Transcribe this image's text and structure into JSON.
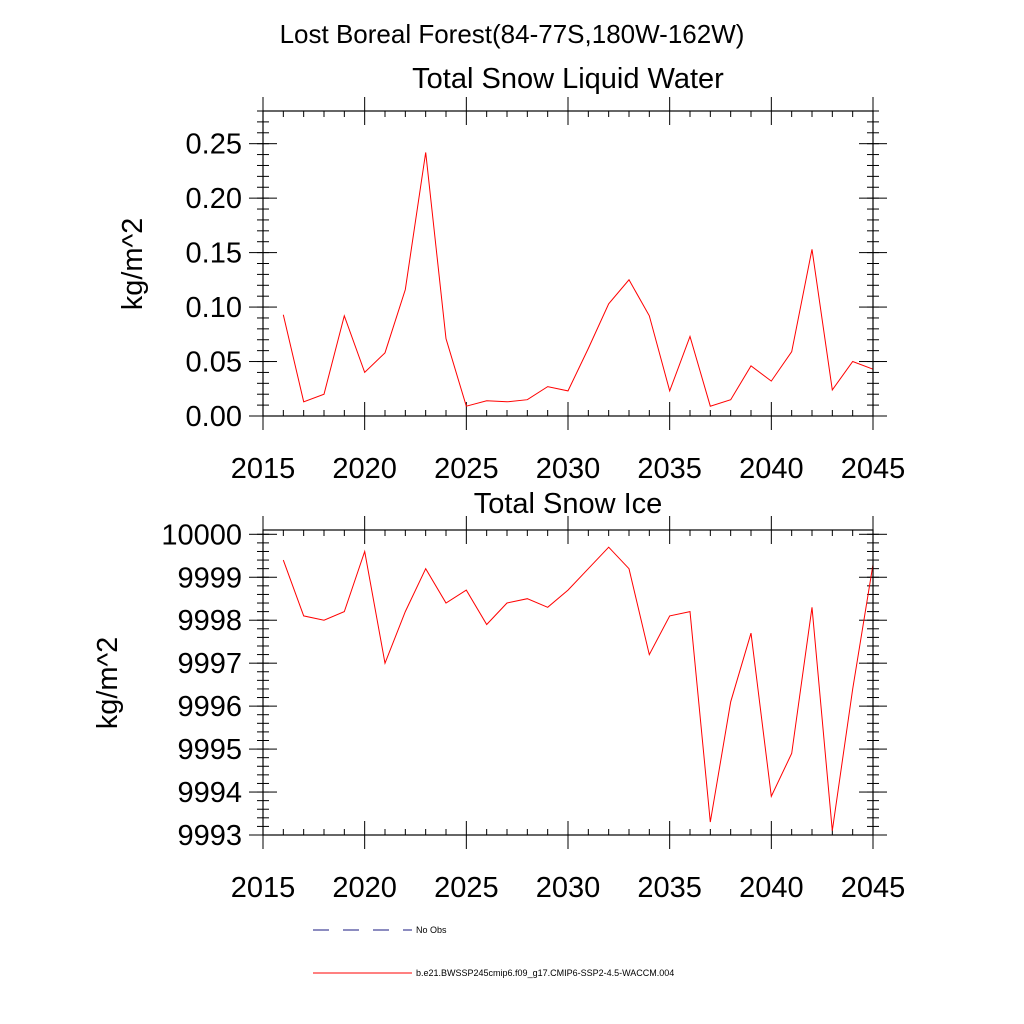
{
  "figure": {
    "title": "Lost Boreal Forest(84-77S,180W-162W)"
  },
  "legend": {
    "obs_label": "No Obs",
    "model_label": "b.e21.BWSSP245cmip6.f09_g17.CMIP6-SSP2-4.5-WACCM.004",
    "obs_color": "#1a1a80",
    "model_color": "#ff0000"
  },
  "chart_data": [
    {
      "type": "line",
      "title": "Total Snow Liquid Water",
      "xlabel": "",
      "ylabel": "kg/m^2",
      "xlim": [
        2015,
        2045
      ],
      "ylim": [
        0.0,
        0.28
      ],
      "xticks": [
        2015,
        2020,
        2025,
        2030,
        2035,
        2040,
        2045
      ],
      "xtick_labels": [
        "2015",
        "2020",
        "2025",
        "2030",
        "2035",
        "2040",
        "2045"
      ],
      "yticks": [
        0.0,
        0.05,
        0.1,
        0.15,
        0.2,
        0.25
      ],
      "ytick_labels": [
        "0.00",
        "0.05",
        "0.10",
        "0.15",
        "0.20",
        "0.25"
      ],
      "grid": false,
      "series": [
        {
          "color": "#ff0000",
          "x": [
            2016,
            2017,
            2018,
            2019,
            2020,
            2021,
            2022,
            2023,
            2024,
            2025,
            2026,
            2027,
            2028,
            2029,
            2030,
            2031,
            2032,
            2033,
            2034,
            2035,
            2036,
            2037,
            2038,
            2039,
            2040,
            2041,
            2042,
            2043,
            2044,
            2045
          ],
          "values": [
            0.093,
            0.013,
            0.02,
            0.092,
            0.04,
            0.058,
            0.116,
            0.242,
            0.071,
            0.009,
            0.014,
            0.013,
            0.015,
            0.027,
            0.023,
            0.062,
            0.103,
            0.125,
            0.092,
            0.023,
            0.073,
            0.009,
            0.015,
            0.046,
            0.032,
            0.059,
            0.153,
            0.024,
            0.05,
            0.043
          ]
        }
      ]
    },
    {
      "type": "line",
      "title": "Total Snow Ice",
      "xlabel": "",
      "ylabel": "kg/m^2",
      "xlim": [
        2015,
        2045
      ],
      "ylim": [
        9993,
        10000.1
      ],
      "xticks": [
        2015,
        2020,
        2025,
        2030,
        2035,
        2040,
        2045
      ],
      "xtick_labels": [
        "2015",
        "2020",
        "2025",
        "2030",
        "2035",
        "2040",
        "2045"
      ],
      "yticks": [
        9993,
        9994,
        9995,
        9996,
        9997,
        9998,
        9999,
        10000
      ],
      "ytick_labels": [
        "9993",
        "9994",
        "9995",
        "9996",
        "9997",
        "9998",
        "9999",
        "10000"
      ],
      "grid": false,
      "series": [
        {
          "color": "#ff0000",
          "x": [
            2016,
            2017,
            2018,
            2019,
            2020,
            2021,
            2022,
            2023,
            2024,
            2025,
            2026,
            2027,
            2028,
            2029,
            2030,
            2031,
            2032,
            2033,
            2034,
            2035,
            2036,
            2037,
            2038,
            2039,
            2040,
            2041,
            2042,
            2043,
            2044,
            2045
          ],
          "values": [
            9999.4,
            9998.1,
            9998.0,
            9998.2,
            9999.6,
            9997.0,
            9998.2,
            9999.2,
            9998.4,
            9998.7,
            9997.9,
            9998.4,
            9998.5,
            9998.3,
            9998.7,
            9999.2,
            9999.7,
            9999.2,
            9997.2,
            9998.1,
            9998.2,
            9993.3,
            9996.1,
            9997.7,
            9993.9,
            9994.9,
            9998.3,
            9993.1,
            9996.4,
            9999.3
          ]
        }
      ]
    }
  ]
}
